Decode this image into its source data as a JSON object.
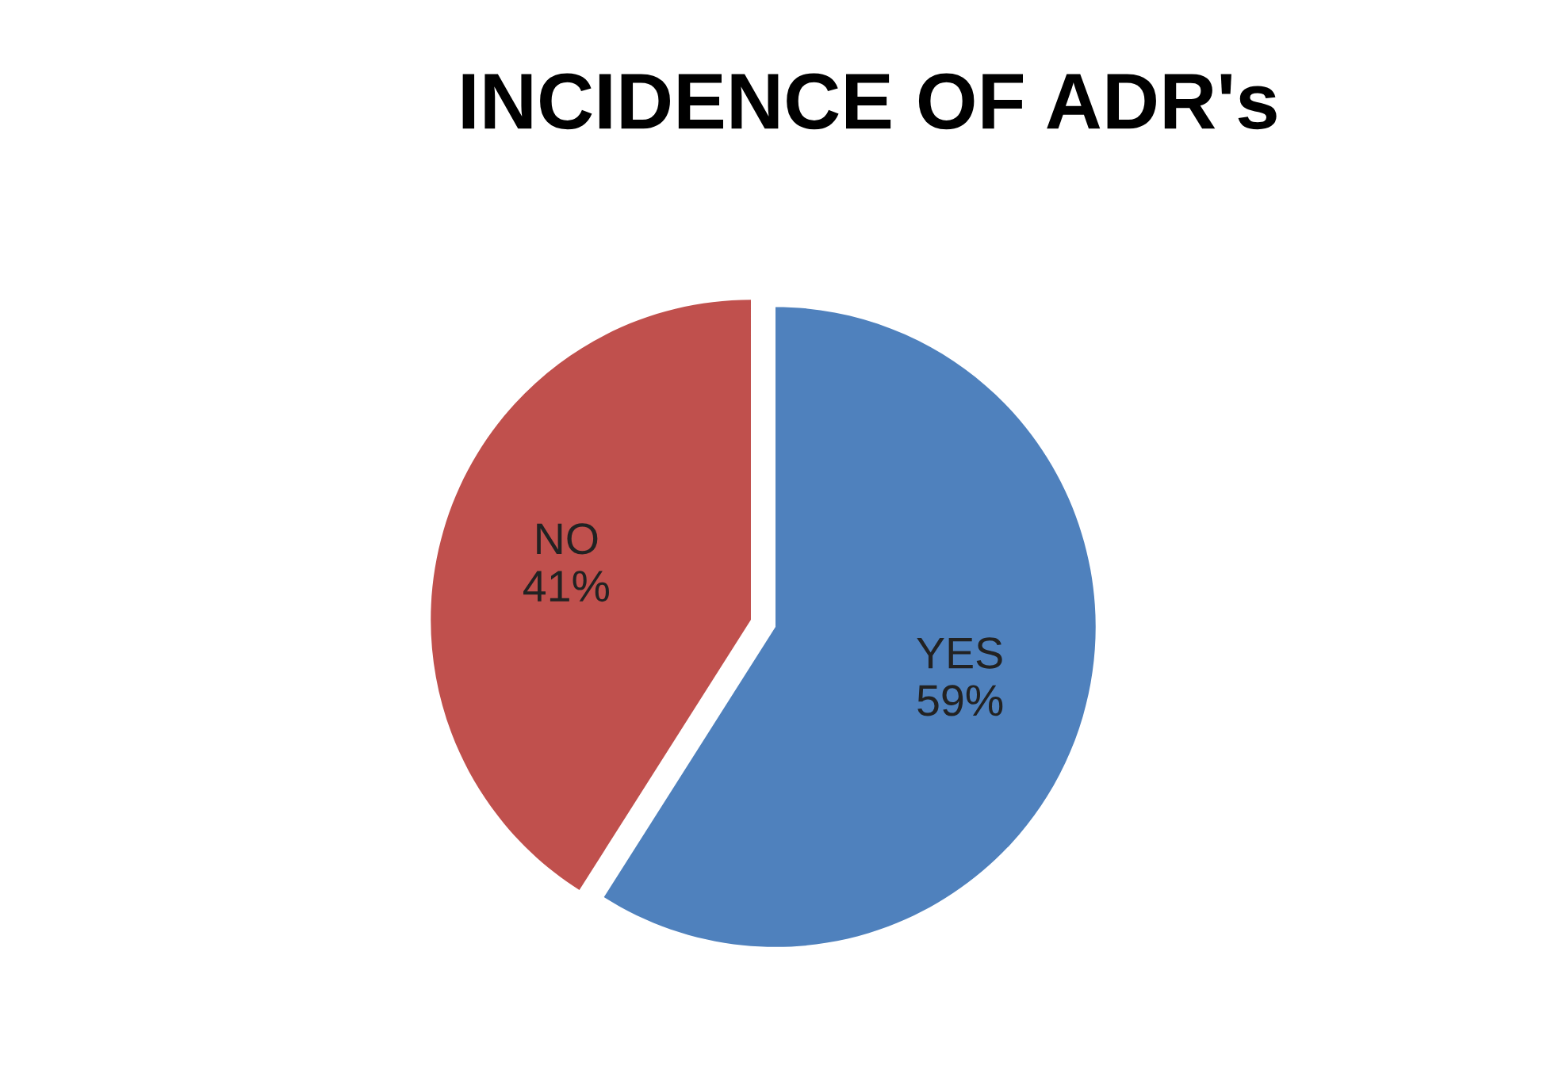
{
  "chart_data": {
    "type": "pie",
    "title": "INCIDENCE OF ADR's",
    "categories": [
      "YES",
      "NO"
    ],
    "values": [
      59,
      41
    ],
    "colors": [
      "#4f81bd",
      "#c0504d"
    ],
    "value_labels": [
      "59%",
      "41%"
    ],
    "legend": false
  }
}
